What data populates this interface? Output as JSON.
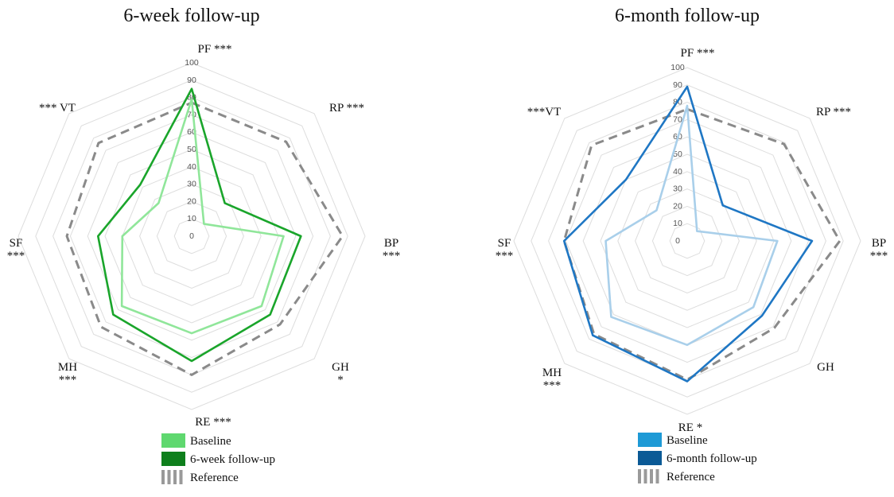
{
  "chart_data": [
    {
      "type": "radar",
      "title": "6-week follow-up",
      "axes": [
        "PF",
        "RP",
        "BP",
        "GH",
        "RE",
        "MH",
        "SF",
        "VT"
      ],
      "axis_labels": [
        "PF ***",
        "RP ***",
        "BP ***",
        "GH *",
        "RE ***",
        "MH ***",
        "SF ***",
        "*** VT"
      ],
      "rlim": [
        0,
        100
      ],
      "ticks": [
        "0",
        "10",
        "20",
        "30",
        "40",
        "50",
        "60",
        "70",
        "80",
        "90",
        "100"
      ],
      "legend_position": "bottom",
      "series": [
        {
          "name": "Baseline",
          "color": "#90e69a",
          "style": "solid",
          "values": [
            79,
            10,
            53,
            57,
            56,
            57,
            40,
            27
          ]
        },
        {
          "name": "6-week follow-up",
          "color": "#1aa52b",
          "style": "solid",
          "values": [
            85,
            27,
            63,
            64,
            72,
            64,
            54,
            42
          ]
        },
        {
          "name": "Reference",
          "color": "#8a8a8a",
          "style": "dashed",
          "values": [
            77,
            77,
            87,
            72,
            80,
            74,
            72,
            76
          ]
        }
      ],
      "legend_swatches": [
        "#5fd86f",
        "#0e7f1c",
        "#9a9a9a"
      ]
    },
    {
      "type": "radar",
      "title": "6-month follow-up",
      "axes": [
        "PF",
        "RP",
        "BP",
        "GH",
        "RE",
        "MH",
        "SF",
        "VT"
      ],
      "axis_labels": [
        "PF ***",
        "RP ***",
        "BP ***",
        "GH",
        "RE *",
        "MH ***",
        "SF ***",
        "***VT"
      ],
      "rlim": [
        0,
        100
      ],
      "ticks": [
        "0",
        "10",
        "20",
        "30",
        "40",
        "50",
        "60",
        "70",
        "80",
        "90",
        "100"
      ],
      "legend_position": "bottom",
      "series": [
        {
          "name": "Baseline",
          "color": "#a9cfea",
          "style": "solid",
          "values": [
            78,
            8,
            52,
            54,
            60,
            62,
            47,
            25
          ]
        },
        {
          "name": "6-month follow-up",
          "color": "#1f77c4",
          "style": "solid",
          "values": [
            89,
            29,
            72,
            61,
            81,
            77,
            71,
            50
          ]
        },
        {
          "name": "Reference",
          "color": "#8a8a8a",
          "style": "dashed",
          "values": [
            76,
            79,
            88,
            71,
            80,
            76,
            71,
            78
          ]
        }
      ],
      "legend_swatches": [
        "#1e9ad6",
        "#0b5a96",
        "#9a9a9a"
      ]
    }
  ]
}
